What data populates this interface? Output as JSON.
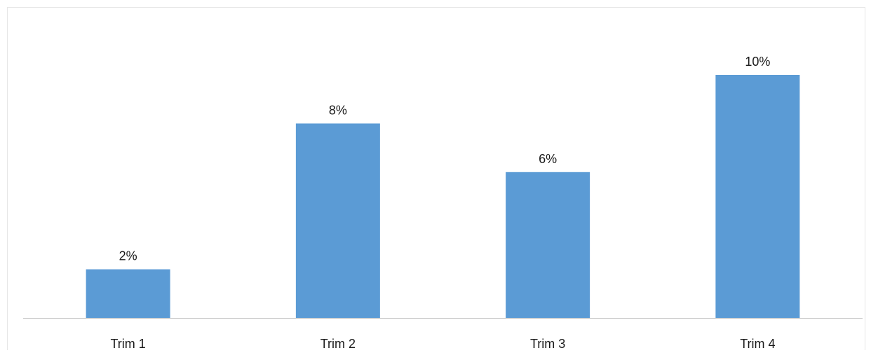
{
  "chart_data": {
    "type": "bar",
    "title": "",
    "xlabel": "",
    "ylabel": "",
    "categories": [
      "Trim 1",
      "Trim 2",
      "Trim 3",
      "Trim 4"
    ],
    "values": [
      2,
      8,
      6,
      10
    ],
    "data_labels": [
      "2%",
      "8%",
      "6%",
      "10%"
    ],
    "ylim": [
      0,
      12
    ],
    "grid": false,
    "legend": "none",
    "bar_color": "#5b9bd5",
    "axis_color": "#bfbfbf"
  }
}
